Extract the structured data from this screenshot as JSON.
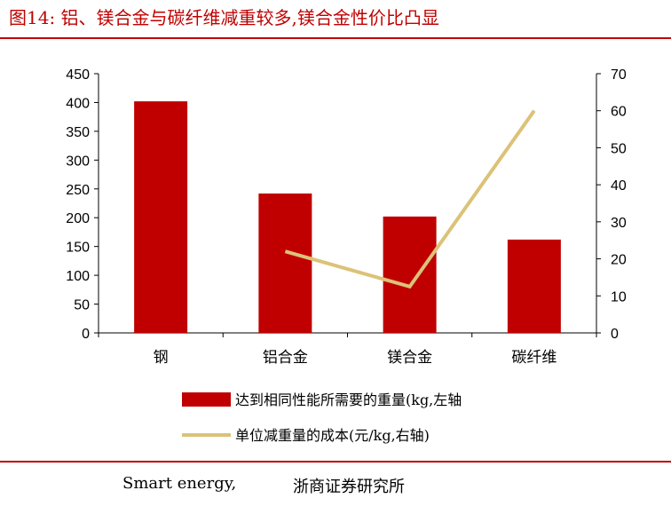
{
  "figure": {
    "title": "图14:  铝、镁合金与碳纤维减重较多,镁合金性价比凸显"
  },
  "source": {
    "left": "Smart energy,",
    "right": "浙商证券研究所"
  },
  "colors": {
    "title": "#c00000",
    "bar": "#c00000",
    "line": "#dcc278",
    "axis": "#000000"
  },
  "chart_data": {
    "type": "bar",
    "categories": [
      "钢",
      "铝合金",
      "镁合金",
      "碳纤维"
    ],
    "y_left": {
      "min": 0,
      "max": 450,
      "step": 50,
      "ticks": [
        "0",
        "50",
        "100",
        "150",
        "200",
        "250",
        "300",
        "350",
        "400",
        "450"
      ]
    },
    "y_right": {
      "min": 0,
      "max": 70,
      "step": 10,
      "ticks": [
        "0",
        "10",
        "20",
        "30",
        "40",
        "50",
        "60",
        "70"
      ]
    },
    "series": [
      {
        "name": "达到相同性能所需要的重量(kg,左轴",
        "type": "bar",
        "axis": "left",
        "values": [
          402,
          242,
          202,
          162
        ]
      },
      {
        "name": "单位减重量的成本(元/kg,右轴)",
        "type": "line",
        "axis": "right",
        "values": [
          null,
          22,
          12.5,
          60
        ]
      }
    ],
    "legend_position": "bottom",
    "grid": false
  }
}
